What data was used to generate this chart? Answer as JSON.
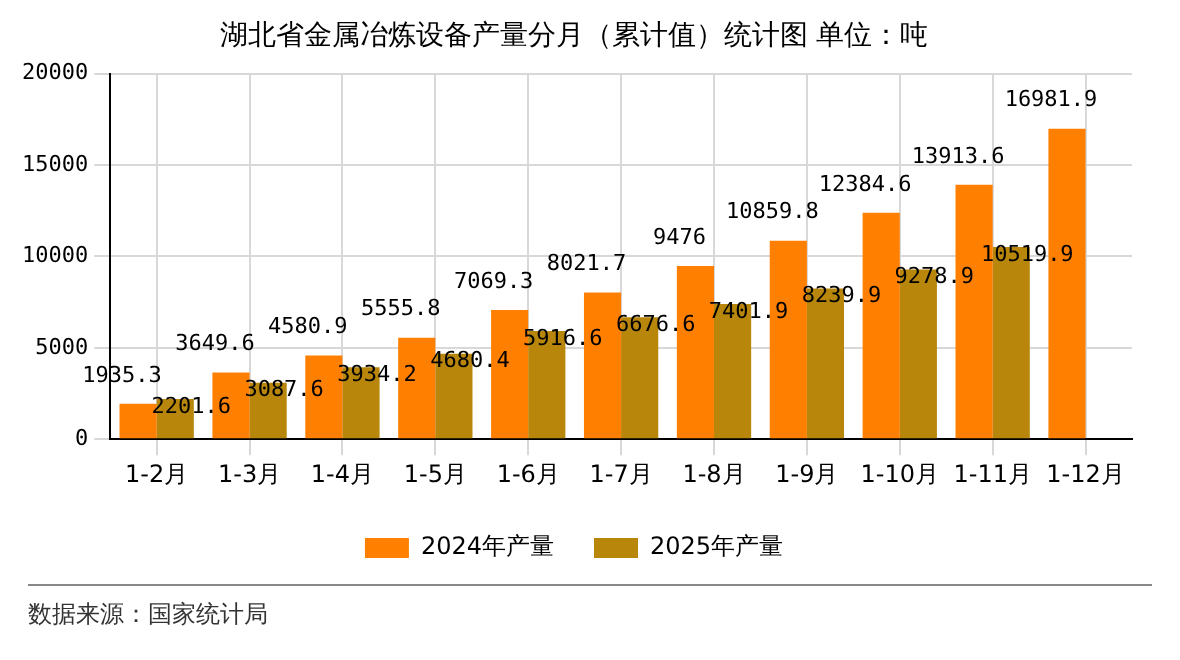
{
  "chart_data": {
    "type": "bar",
    "title": "湖北省金属冶炼设备产量分月（累计值）统计图 单位：吨",
    "categories": [
      "1-2月",
      "1-3月",
      "1-4月",
      "1-5月",
      "1-6月",
      "1-7月",
      "1-8月",
      "1-9月",
      "1-10月",
      "1-11月",
      "1-12月"
    ],
    "series": [
      {
        "name": "2024年产量",
        "color": "#ff8000",
        "values": [
          1935.3,
          3649.6,
          4580.9,
          5555.8,
          7069.3,
          8021.7,
          9476,
          10859.8,
          12384.6,
          13913.6,
          16981.9
        ]
      },
      {
        "name": "2025年产量",
        "color": "#b8860b",
        "values": [
          2201.6,
          3087.6,
          3934.2,
          4680.4,
          5916.6,
          6676.6,
          7401.9,
          8239.9,
          9278.9,
          10519.9,
          null
        ]
      }
    ],
    "ylim": [
      0,
      20000
    ],
    "yticks": [
      0,
      5000,
      10000,
      15000,
      20000
    ],
    "grid": true,
    "legend": "bottom",
    "data_labels": true,
    "annotations": [
      "数据来源：国家统计局"
    ]
  }
}
